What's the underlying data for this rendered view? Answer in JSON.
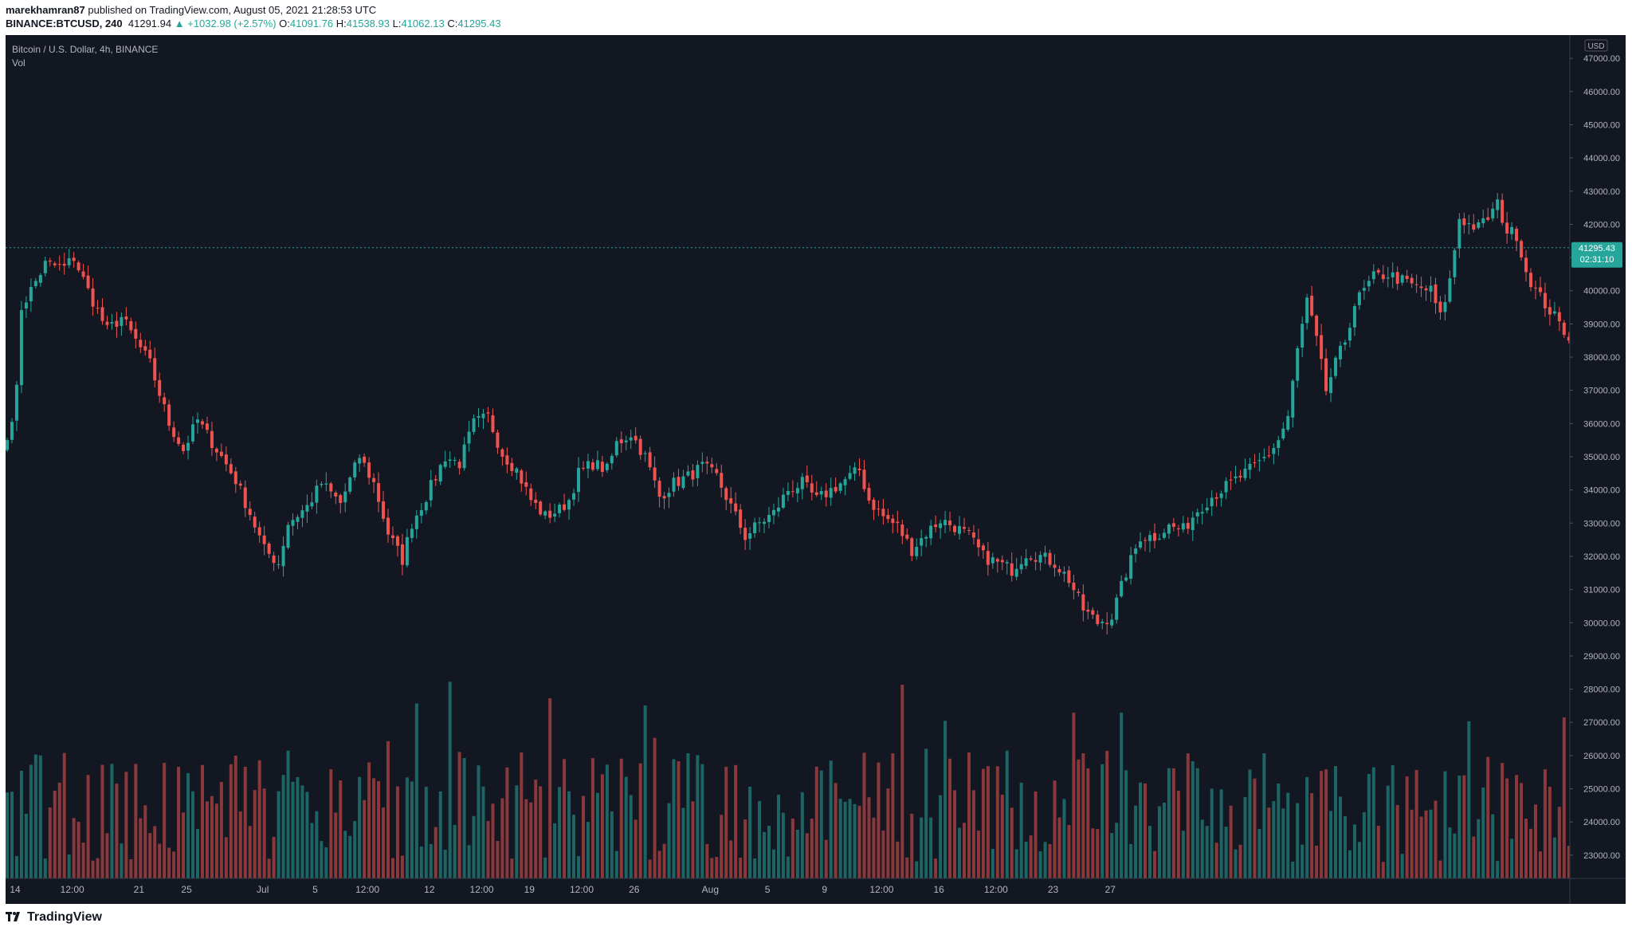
{
  "header": {
    "publisher": "marekhamran87",
    "published_text": "published on TradingView.com, August 05, 2021 21:28:53 UTC",
    "symbol": "BINANCE:BTCUSD, 240",
    "last": "41291.94",
    "change": "+1032.98 (+2.57%)",
    "ohlc": {
      "O": "41091.76",
      "H": "41538.93",
      "L": "41062.13",
      "C": "41295.43"
    }
  },
  "legend": {
    "title": "Bitcoin / U.S. Dollar, 4h, BINANCE",
    "indicator": "Vol"
  },
  "price_axis": {
    "currency": "USD",
    "labels": [
      "47000.00",
      "46000.00",
      "45000.00",
      "44000.00",
      "43000.00",
      "42000.00",
      "41000.00",
      "40000.00",
      "39000.00",
      "38000.00",
      "37000.00",
      "36000.00",
      "35000.00",
      "34000.00",
      "33000.00",
      "32000.00",
      "31000.00",
      "30000.00",
      "29000.00",
      "28000.00",
      "27000.00",
      "26000.00",
      "25000.00",
      "24000.00",
      "23000.00"
    ],
    "current_price": "41295.43",
    "countdown": "02:31:10"
  },
  "time_axis": {
    "labels": [
      "14",
      "12:00",
      "21",
      "25",
      "Jul",
      "5",
      "12:00",
      "12",
      "12:00",
      "19",
      "12:00",
      "26",
      "Aug",
      "5",
      "9",
      "12:00",
      "16",
      "12:00",
      "23",
      "27"
    ]
  },
  "chart_data": {
    "type": "candlestick",
    "ylim": [
      22300,
      47700
    ],
    "timeframe": "4h",
    "up_color": "#26a69a",
    "down_color": "#ef5350",
    "close_anchors": [
      [
        0,
        35500
      ],
      [
        2,
        37000
      ],
      [
        3,
        39500
      ],
      [
        8,
        40800
      ],
      [
        12,
        40700
      ],
      [
        14,
        41000
      ],
      [
        17,
        40000
      ],
      [
        21,
        38800
      ],
      [
        24,
        39200
      ],
      [
        30,
        37800
      ],
      [
        34,
        36000
      ],
      [
        37,
        35200
      ],
      [
        40,
        36100
      ],
      [
        45,
        35000
      ],
      [
        48,
        34300
      ],
      [
        51,
        33300
      ],
      [
        54,
        32200
      ],
      [
        57,
        31800
      ],
      [
        59,
        33000
      ],
      [
        63,
        33500
      ],
      [
        66,
        34200
      ],
      [
        70,
        33600
      ],
      [
        74,
        35000
      ],
      [
        77,
        34200
      ],
      [
        80,
        32700
      ],
      [
        83,
        31900
      ],
      [
        85,
        33000
      ],
      [
        88,
        33800
      ],
      [
        92,
        35000
      ],
      [
        95,
        34800
      ],
      [
        98,
        36000
      ],
      [
        101,
        36200
      ],
      [
        104,
        35100
      ],
      [
        107,
        34600
      ],
      [
        110,
        33700
      ],
      [
        113,
        33200
      ],
      [
        116,
        33400
      ],
      [
        118,
        33700
      ],
      [
        120,
        34500
      ],
      [
        123,
        34800
      ],
      [
        126,
        34600
      ],
      [
        128,
        35400
      ],
      [
        131,
        35700
      ],
      [
        134,
        35000
      ],
      [
        137,
        33800
      ],
      [
        140,
        34200
      ],
      [
        143,
        34400
      ],
      [
        146,
        34700
      ],
      [
        149,
        34400
      ],
      [
        152,
        33500
      ],
      [
        155,
        32600
      ],
      [
        158,
        33000
      ],
      [
        161,
        33300
      ],
      [
        164,
        34000
      ],
      [
        167,
        34200
      ],
      [
        170,
        33700
      ],
      [
        173,
        34000
      ],
      [
        176,
        34300
      ],
      [
        179,
        34600
      ],
      [
        181,
        33700
      ],
      [
        184,
        33200
      ],
      [
        187,
        32900
      ],
      [
        190,
        32200
      ],
      [
        193,
        32700
      ],
      [
        196,
        33100
      ],
      [
        199,
        32900
      ],
      [
        202,
        32600
      ],
      [
        205,
        32000
      ],
      [
        208,
        31800
      ],
      [
        211,
        31600
      ],
      [
        214,
        32100
      ],
      [
        217,
        32000
      ],
      [
        220,
        31800
      ],
      [
        223,
        31300
      ],
      [
        226,
        30400
      ],
      [
        229,
        30000
      ],
      [
        232,
        30200
      ],
      [
        235,
        31500
      ],
      [
        238,
        32600
      ],
      [
        241,
        32600
      ],
      [
        244,
        32900
      ],
      [
        247,
        32800
      ],
      [
        250,
        33400
      ],
      [
        253,
        33800
      ],
      [
        256,
        34100
      ],
      [
        259,
        34400
      ],
      [
        262,
        34700
      ],
      [
        265,
        35100
      ],
      [
        267,
        35500
      ],
      [
        269,
        36200
      ],
      [
        271,
        38200
      ],
      [
        273,
        39700
      ],
      [
        275,
        38500
      ],
      [
        277,
        37000
      ],
      [
        279,
        37800
      ],
      [
        281,
        38500
      ],
      [
        283,
        39600
      ],
      [
        285,
        40000
      ],
      [
        287,
        40400
      ],
      [
        290,
        40500
      ],
      [
        293,
        40300
      ],
      [
        296,
        40100
      ],
      [
        299,
        40000
      ],
      [
        301,
        39200
      ],
      [
        303,
        40300
      ],
      [
        305,
        42200
      ],
      [
        307,
        42000
      ],
      [
        309,
        41900
      ],
      [
        311,
        42200
      ],
      [
        313,
        42600
      ],
      [
        315,
        41800
      ],
      [
        317,
        41700
      ],
      [
        319,
        40600
      ],
      [
        321,
        40000
      ],
      [
        323,
        39600
      ],
      [
        325,
        39200
      ],
      [
        327,
        38800
      ],
      [
        329,
        38500
      ],
      [
        331,
        38300
      ],
      [
        333,
        38400
      ],
      [
        335,
        39800
      ],
      [
        337,
        40200
      ],
      [
        339,
        39700
      ],
      [
        341,
        38800
      ],
      [
        343,
        40200
      ],
      [
        344,
        41295
      ]
    ],
    "volume_scale_max": 28500
  }
}
